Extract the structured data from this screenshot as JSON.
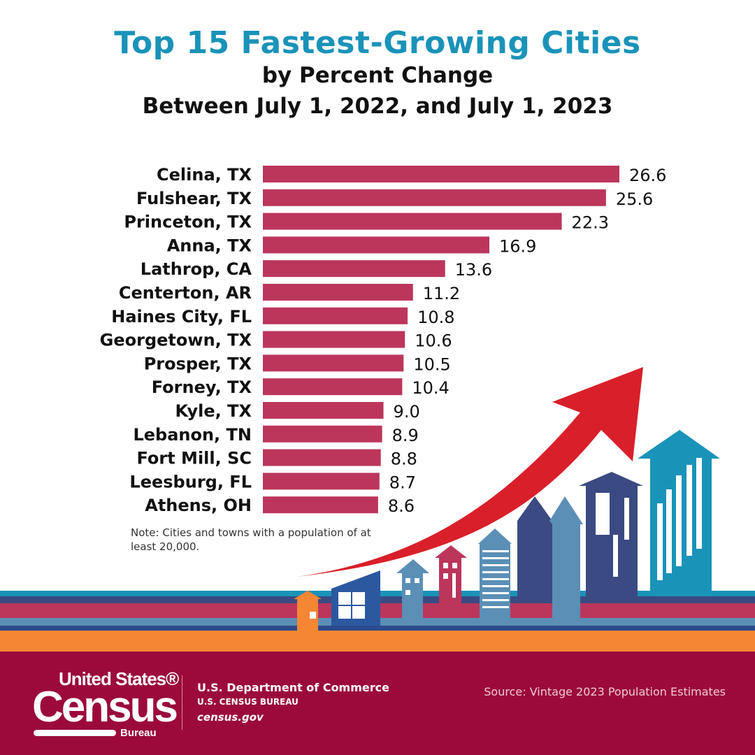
{
  "header": {
    "title": "Top 15 Fastest-Growing Cities",
    "subtitle_line1": "by Percent Change",
    "subtitle_line2": "Between July 1, 2022, and July 1, 2023"
  },
  "chart_data": {
    "type": "bar",
    "orientation": "horizontal",
    "title": "Top 15 Fastest-Growing Cities",
    "subtitle": "by Percent Change Between July 1, 2022, and July 1, 2023",
    "categories": [
      "Celina, TX",
      "Fulshear, TX",
      "Princeton, TX",
      "Anna, TX",
      "Lathrop, CA",
      "Centerton, AR",
      "Haines City, FL",
      "Georgetown, TX",
      "Prosper, TX",
      "Forney, TX",
      "Kyle, TX",
      "Lebanon, TN",
      "Fort Mill, SC",
      "Leesburg, FL",
      "Athens, OH"
    ],
    "values": [
      26.6,
      25.6,
      22.3,
      16.9,
      13.6,
      11.2,
      10.8,
      10.6,
      10.5,
      10.4,
      9.0,
      8.9,
      8.8,
      8.7,
      8.6
    ],
    "value_labels": [
      "26.6",
      "25.6",
      "22.3",
      "16.9",
      "13.6",
      "11.2",
      "10.8",
      "10.6",
      "10.5",
      "10.4",
      "9.0",
      "8.9",
      "8.8",
      "8.7",
      "8.6"
    ],
    "xlim": [
      0,
      26.6
    ],
    "grid": false,
    "bar_color": "#bc365c"
  },
  "note": "Note: Cities and towns with a population of at least 20,000.",
  "footer": {
    "logo_text_top": "United States®",
    "logo_text_main": "Census",
    "logo_text_bottom": "Bureau",
    "department": "U.S. Department of Commerce",
    "bureau": "U.S. CENSUS BUREAU",
    "website": "census.gov",
    "source": "Source: Vintage 2023 Population Estimates"
  },
  "colors": {
    "title": "#1a93b8",
    "footer_bg": "#9b0a3b",
    "arrow": "#d91f2a",
    "orange": "#f48634"
  }
}
